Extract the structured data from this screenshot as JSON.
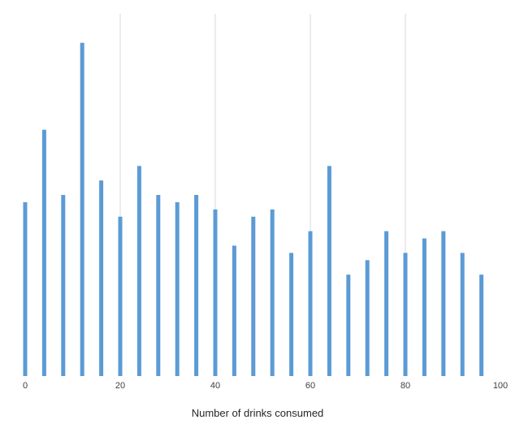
{
  "chart_data": {
    "type": "bar",
    "title": "",
    "xlabel": "Number of drinks consumed",
    "ylabel": "",
    "xlim": [
      0,
      100
    ],
    "x_ticks": [
      0,
      20,
      40,
      60,
      80,
      100
    ],
    "x_tick_labels": [
      "0",
      "20",
      "40",
      "60",
      "80",
      "100"
    ],
    "grid": "vertical",
    "legend": "none",
    "bar_color": "#5b9bd5",
    "grid_color": "#d9d9d9",
    "x": [
      0,
      4,
      8,
      12,
      16,
      20,
      24,
      28,
      32,
      36,
      40,
      44,
      48,
      52,
      56,
      60,
      64,
      68,
      72,
      76,
      80,
      84,
      88,
      92,
      96
    ],
    "values": [
      12,
      17,
      12.5,
      23,
      13.5,
      11,
      14.5,
      12.5,
      12,
      12.5,
      11.5,
      9,
      11,
      11.5,
      8.5,
      10,
      14.5,
      7,
      8,
      10,
      8.5,
      9.5,
      10,
      8.5,
      7
    ],
    "ylim": [
      0,
      25
    ]
  }
}
